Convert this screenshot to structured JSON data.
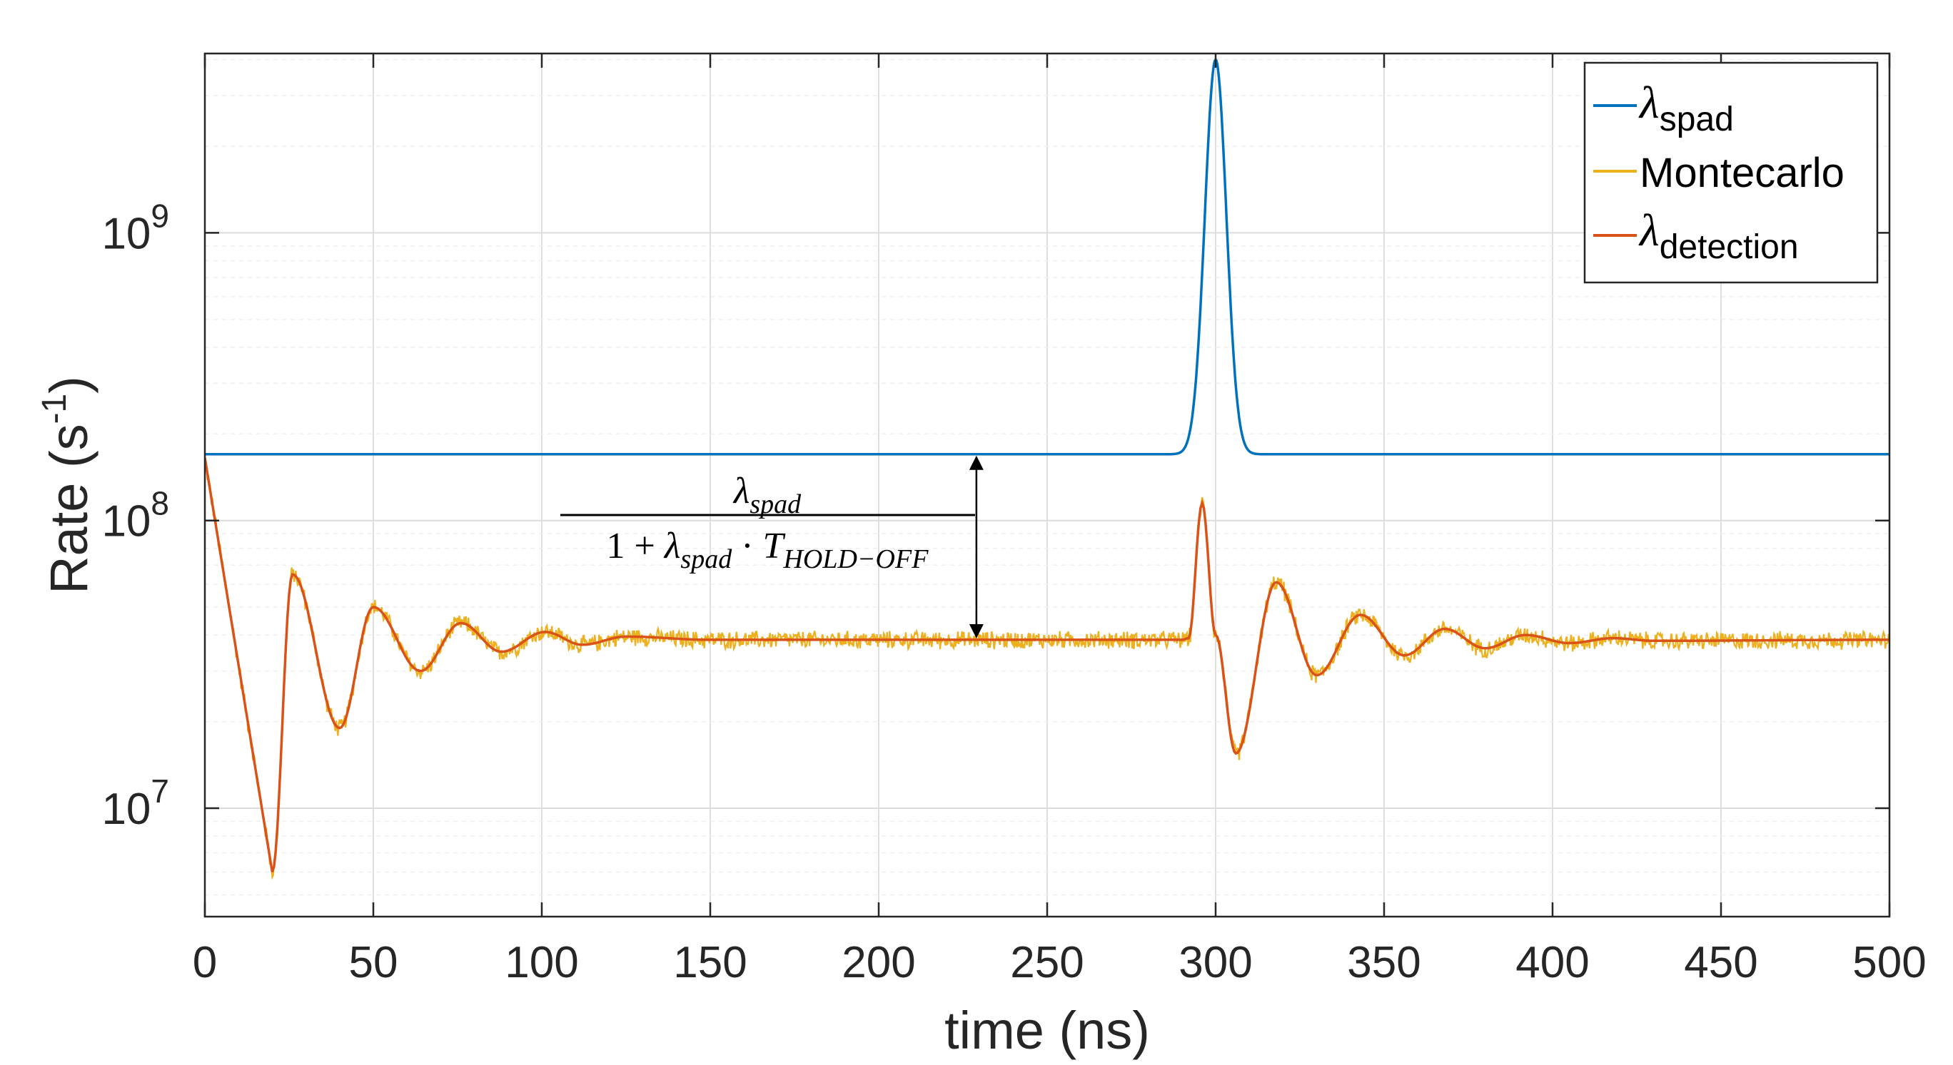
{
  "chart_data": {
    "type": "line",
    "title": "",
    "xlabel": "time (ns)",
    "ylabel": "Rate (s",
    "ylabel_sup": "-1",
    "ylabel_close": ")",
    "xlim": [
      0,
      500
    ],
    "ylim": [
      4200000.0,
      4200000000.0
    ],
    "yscale": "log",
    "grid": true,
    "x_ticks": [
      0,
      50,
      100,
      150,
      200,
      250,
      300,
      350,
      400,
      450,
      500
    ],
    "x_tick_labels": [
      "0",
      "50",
      "100",
      "150",
      "200",
      "250",
      "300",
      "350",
      "400",
      "450",
      "500"
    ],
    "y_ticks": [
      10000000.0,
      100000000.0,
      1000000000.0
    ],
    "y_tick_labels": [
      {
        "base": "10",
        "exp": "7"
      },
      {
        "base": "10",
        "exp": "8"
      },
      {
        "base": "10",
        "exp": "9"
      }
    ],
    "legend_position": "top-right",
    "series": [
      {
        "name": "λ",
        "sub": "spad",
        "color": "#0072BD",
        "model": "pulse",
        "base": 170000000.0,
        "peak": 4000000000.0,
        "center": 300,
        "width": 3.2
      },
      {
        "name": "Montecarlo",
        "sub": "",
        "color": "#EDB120",
        "model": "noisy_detection",
        "noise": 0.045
      },
      {
        "name": "λ",
        "sub": "detection",
        "color": "#D95319",
        "model": "detection",
        "start": 165000000.0,
        "steady": 38500000.0,
        "minima": [
          {
            "x": 20,
            "y": 6000000.0
          },
          {
            "x": 40,
            "y": 19000000.0
          },
          {
            "x": 64,
            "y": 30000000.0
          },
          {
            "x": 88,
            "y": 35000000.0
          },
          {
            "x": 112,
            "y": 37000000.0
          }
        ],
        "maxima": [
          {
            "x": 26,
            "y": 65000000.0
          },
          {
            "x": 50,
            "y": 50000000.0
          },
          {
            "x": 76,
            "y": 44000000.0
          },
          {
            "x": 101,
            "y": 41000000.0
          },
          {
            "x": 125,
            "y": 39500000.0
          }
        ],
        "second_event": [
          {
            "x": 292,
            "y": 39000000.0
          },
          {
            "x": 296,
            "y": 115000000.0
          },
          {
            "x": 300,
            "y": 40000000.0
          },
          {
            "x": 306,
            "y": 15500000.0
          },
          {
            "x": 318,
            "y": 61000000.0
          },
          {
            "x": 330,
            "y": 29000000.0
          },
          {
            "x": 343,
            "y": 47000000.0
          },
          {
            "x": 356,
            "y": 34000000.0
          },
          {
            "x": 368,
            "y": 42000000.0
          },
          {
            "x": 380,
            "y": 36000000.0
          },
          {
            "x": 392,
            "y": 40000000.0
          },
          {
            "x": 405,
            "y": 37500000.0
          },
          {
            "x": 418,
            "y": 39000000.0
          },
          {
            "x": 430,
            "y": 38200000.0
          }
        ]
      }
    ],
    "annotation": {
      "arrow_x": 229,
      "arrow_top": 170000000.0,
      "arrow_bottom": 38500000.0,
      "numerator": {
        "sym": "λ",
        "sub": "spad"
      },
      "denominator": {
        "lead": "1 + ",
        "sym": "λ",
        "sub": "spad",
        "mid": " · ",
        "T": "T",
        "Tsub": "HOLD−OFF"
      }
    }
  }
}
